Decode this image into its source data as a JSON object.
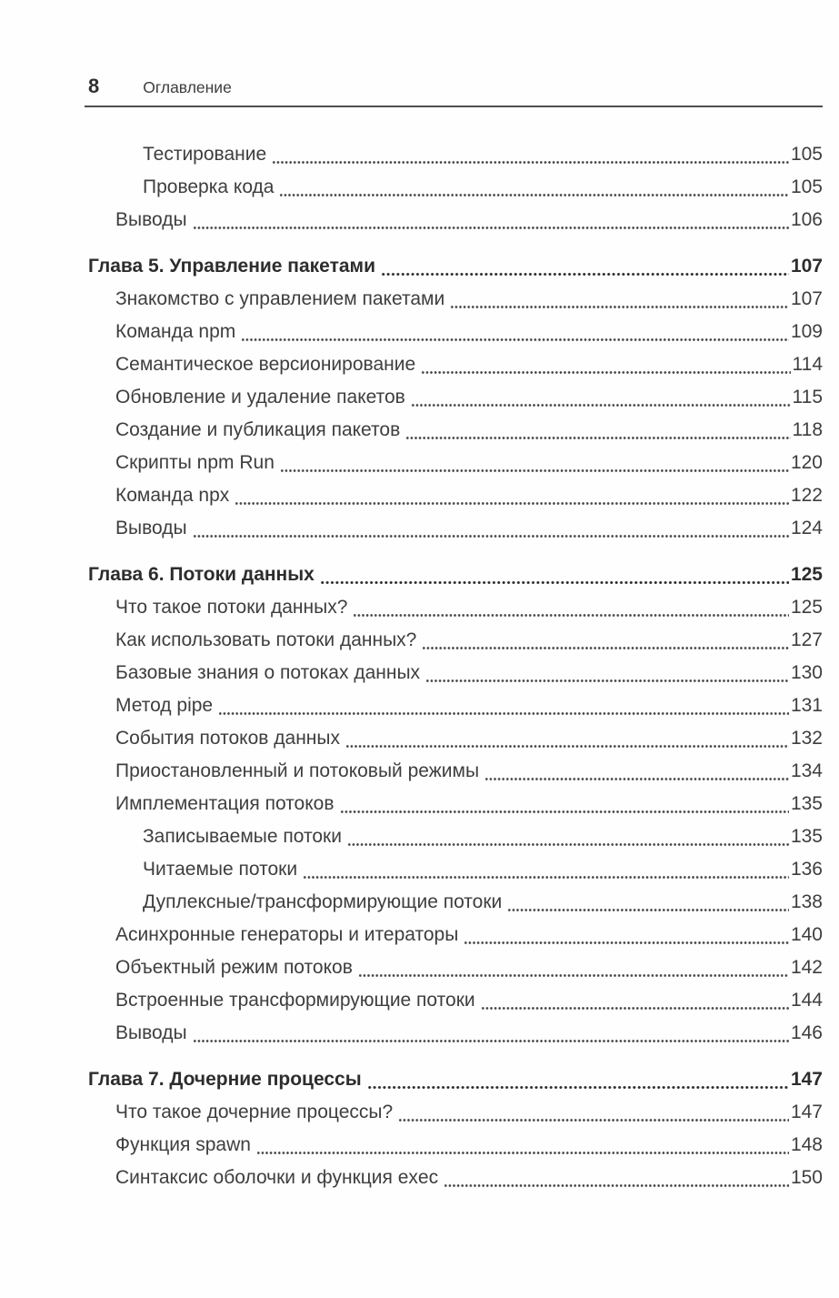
{
  "header": {
    "page_number": "8",
    "title": "Оглавление"
  },
  "toc": {
    "entries": [
      {
        "label": "Тестирование",
        "page": "105",
        "level": 2,
        "chapter": false
      },
      {
        "label": "Проверка кода",
        "page": "105",
        "level": 2,
        "chapter": false
      },
      {
        "label": "Выводы",
        "page": "106",
        "level": 1,
        "chapter": false
      },
      {
        "label": "Глава 5. Управление пакетами",
        "page": "107",
        "level": 0,
        "chapter": true
      },
      {
        "label": "Знакомство с управлением пакетами",
        "page": "107",
        "level": 1,
        "chapter": false
      },
      {
        "label": "Команда npm",
        "page": "109",
        "level": 1,
        "chapter": false
      },
      {
        "label": "Семантическое версионирование",
        "page": "114",
        "level": 1,
        "chapter": false
      },
      {
        "label": "Обновление и удаление пакетов",
        "page": "115",
        "level": 1,
        "chapter": false
      },
      {
        "label": "Создание и публикация пакетов",
        "page": "118",
        "level": 1,
        "chapter": false
      },
      {
        "label": "Скрипты npm Run",
        "page": "120",
        "level": 1,
        "chapter": false
      },
      {
        "label": "Команда npx",
        "page": "122",
        "level": 1,
        "chapter": false
      },
      {
        "label": "Выводы",
        "page": "124",
        "level": 1,
        "chapter": false
      },
      {
        "label": "Глава 6. Потоки данных",
        "page": "125",
        "level": 0,
        "chapter": true
      },
      {
        "label": "Что такое потоки данных?",
        "page": "125",
        "level": 1,
        "chapter": false
      },
      {
        "label": "Как использовать потоки данных?",
        "page": "127",
        "level": 1,
        "chapter": false
      },
      {
        "label": "Базовые знания о потоках данных",
        "page": "130",
        "level": 1,
        "chapter": false
      },
      {
        "label": "Метод pipe",
        "page": "131",
        "level": 1,
        "chapter": false
      },
      {
        "label": "События потоков данных",
        "page": "132",
        "level": 1,
        "chapter": false
      },
      {
        "label": "Приостановленный и потоковый режимы",
        "page": "134",
        "level": 1,
        "chapter": false
      },
      {
        "label": "Имплементация потоков",
        "page": "135",
        "level": 1,
        "chapter": false
      },
      {
        "label": "Записываемые потоки",
        "page": "135",
        "level": 2,
        "chapter": false
      },
      {
        "label": "Читаемые потоки",
        "page": "136",
        "level": 2,
        "chapter": false
      },
      {
        "label": "Дуплексные/трансформирующие потоки",
        "page": "138",
        "level": 2,
        "chapter": false
      },
      {
        "label": "Асинхронные генераторы и итераторы",
        "page": "140",
        "level": 1,
        "chapter": false
      },
      {
        "label": "Объектный режим потоков",
        "page": "142",
        "level": 1,
        "chapter": false
      },
      {
        "label": "Встроенные трансформирующие потоки",
        "page": "144",
        "level": 1,
        "chapter": false
      },
      {
        "label": "Выводы",
        "page": "146",
        "level": 1,
        "chapter": false
      },
      {
        "label": "Глава 7. Дочерние процессы",
        "page": "147",
        "level": 0,
        "chapter": true
      },
      {
        "label": "Что такое дочерние процессы?",
        "page": "147",
        "level": 1,
        "chapter": false
      },
      {
        "label": "Функция spawn",
        "page": "148",
        "level": 1,
        "chapter": false
      },
      {
        "label": "Синтаксис оболочки и функция exec",
        "page": "150",
        "level": 1,
        "chapter": false
      }
    ]
  },
  "colors": {
    "text": "#3e3e3e",
    "heading": "#2d2d2d",
    "rule": "#4f4f4f",
    "dots": "#474747"
  }
}
